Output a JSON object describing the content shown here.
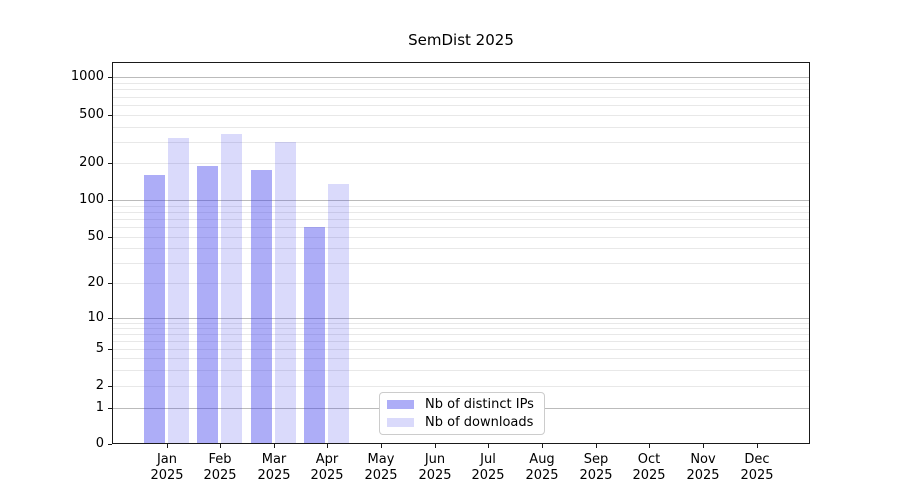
{
  "title": "SemDist 2025",
  "chart_data": {
    "type": "bar",
    "title": "SemDist 2025",
    "scale_y": "symlog",
    "grid": "both",
    "categories": [
      "Jan",
      "Feb",
      "Mar",
      "Apr",
      "May",
      "Jun",
      "Jul",
      "Aug",
      "Sep",
      "Oct",
      "Nov",
      "Dec"
    ],
    "category_year": "2025",
    "series": [
      {
        "name": "Nb of distinct IPs",
        "color": "rgba(60,60,235,0.42)",
        "values": [
          160,
          190,
          175,
          60,
          null,
          null,
          null,
          null,
          null,
          null,
          null,
          null
        ]
      },
      {
        "name": "Nb of downloads",
        "color": "rgba(60,60,235,0.19)",
        "values": [
          320,
          345,
          300,
          135,
          null,
          null,
          null,
          null,
          null,
          null,
          null,
          null
        ]
      }
    ],
    "y_ticks": [
      0,
      1,
      2,
      5,
      10,
      20,
      50,
      100,
      200,
      500,
      1000
    ],
    "ylim": [
      0,
      1300
    ],
    "xlabel": "",
    "ylabel": "",
    "legend_position": "bottom-center-inside",
    "grid_major_color": "#bbbbbb",
    "grid_minor_color": "#e8e8e8"
  }
}
